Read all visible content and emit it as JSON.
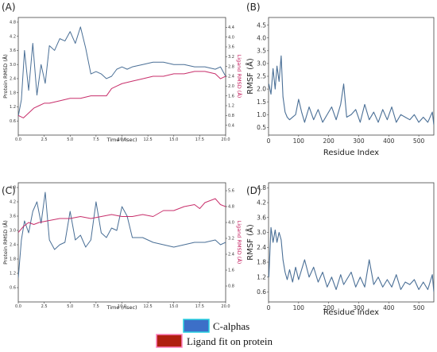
{
  "chart_data": [
    {
      "panel_label": "(A)",
      "type": "line",
      "xlabel": "Time (nsec)",
      "ylabel_left": "Protein RMSD (Å)",
      "ylabel_right": "Ligand RMSD (Å)",
      "xlim": [
        0,
        20
      ],
      "ylim_left": [
        0,
        5.0
      ],
      "ylim_right": [
        0,
        4.8
      ],
      "xticks": [
        "0.0",
        "2.5",
        "5.0",
        "7.5",
        "10.0",
        "12.5",
        "15.0",
        "17.5",
        "20.0"
      ],
      "yticks_left": [
        "0.6",
        "1.2",
        "1.8",
        "2.4",
        "3.0",
        "3.6",
        "4.2",
        "4.8"
      ],
      "yticks_right": [
        "0.4",
        "0.8",
        "1.2",
        "1.6",
        "2.0",
        "2.4",
        "2.8",
        "3.2",
        "3.6",
        "4.0",
        "4.4"
      ],
      "series": [
        {
          "color": "#4a6f96",
          "axis": "left",
          "x": [
            0,
            0.3,
            0.6,
            1.0,
            1.4,
            1.8,
            2.2,
            2.6,
            3.0,
            3.5,
            4.0,
            4.5,
            5.0,
            5.5,
            6.0,
            6.5,
            7.0,
            7.5,
            8.0,
            8.5,
            9.0,
            9.5,
            10.0,
            10.5,
            11.0,
            12.0,
            13.0,
            14.0,
            15.0,
            16.0,
            17.0,
            18.0,
            19.0,
            19.5,
            20.0
          ],
          "y": [
            0.8,
            1.5,
            3.6,
            1.9,
            3.9,
            1.7,
            3.0,
            2.2,
            3.8,
            3.6,
            4.1,
            4.0,
            4.4,
            3.9,
            4.6,
            3.7,
            2.6,
            2.7,
            2.6,
            2.4,
            2.5,
            2.8,
            2.9,
            2.8,
            2.9,
            3.0,
            3.1,
            3.1,
            3.0,
            3.0,
            2.9,
            2.9,
            2.8,
            2.9,
            2.5
          ]
        },
        {
          "color": "#c2185b",
          "axis": "right",
          "x": [
            0,
            0.5,
            1.0,
            1.5,
            2.0,
            2.5,
            3.0,
            4.0,
            5.0,
            6.0,
            7.0,
            8.0,
            8.5,
            9.0,
            9.5,
            10.0,
            11.0,
            12.0,
            13.0,
            14.0,
            15.0,
            16.0,
            17.0,
            18.0,
            19.0,
            19.5,
            20.0
          ],
          "y": [
            0.8,
            0.7,
            0.9,
            1.1,
            1.2,
            1.3,
            1.3,
            1.4,
            1.5,
            1.5,
            1.6,
            1.6,
            1.6,
            1.9,
            2.0,
            2.1,
            2.2,
            2.3,
            2.4,
            2.4,
            2.5,
            2.5,
            2.6,
            2.6,
            2.5,
            2.3,
            2.4
          ]
        }
      ]
    },
    {
      "panel_label": "(B)",
      "type": "line",
      "xlabel": "Residue Index",
      "ylabel": "RMSF (Å)",
      "xlim": [
        0,
        550
      ],
      "ylim": [
        0.2,
        4.8
      ],
      "xticks": [
        "0",
        "100",
        "200",
        "300",
        "400",
        "500"
      ],
      "yticks": [
        "0.5",
        "1.0",
        "1.5",
        "2.0",
        "2.5",
        "3.0",
        "3.5",
        "4.0",
        "4.5"
      ],
      "series": [
        {
          "color": "#4a6f96",
          "x": [
            1,
            8,
            15,
            22,
            28,
            35,
            42,
            48,
            55,
            62,
            70,
            80,
            90,
            100,
            110,
            120,
            135,
            150,
            165,
            180,
            195,
            210,
            225,
            240,
            250,
            260,
            275,
            290,
            305,
            320,
            335,
            350,
            365,
            380,
            395,
            410,
            425,
            440,
            455,
            470,
            485,
            500,
            515,
            530,
            545,
            550
          ],
          "y": [
            2.2,
            1.8,
            2.8,
            2.0,
            2.9,
            2.3,
            3.3,
            1.7,
            1.1,
            0.9,
            0.8,
            0.9,
            1.0,
            1.6,
            1.1,
            0.7,
            1.3,
            0.8,
            1.2,
            0.7,
            1.0,
            1.3,
            0.8,
            1.4,
            2.2,
            0.9,
            1.0,
            1.2,
            0.7,
            1.4,
            0.8,
            1.1,
            0.7,
            1.2,
            0.8,
            1.3,
            0.7,
            1.0,
            0.9,
            0.8,
            1.0,
            0.7,
            0.9,
            0.7,
            1.1,
            0.6
          ]
        }
      ]
    },
    {
      "panel_label": "(C)",
      "type": "line",
      "xlabel": "Time (nsec)",
      "ylabel_left": "Protein RMSD (Å)",
      "ylabel_right": "Ligand RMSD (Å)",
      "xlim": [
        0,
        20
      ],
      "ylim_left": [
        0,
        5.0
      ],
      "ylim_right": [
        0,
        6.0
      ],
      "xticks": [
        "0.0",
        "2.5",
        "5.0",
        "7.5",
        "10.0",
        "12.5",
        "15.0",
        "17.5",
        "20.0"
      ],
      "yticks_left": [
        "0.6",
        "1.2",
        "1.8",
        "2.4",
        "3.0",
        "3.6",
        "4.2",
        "4.8"
      ],
      "yticks_right": [
        "0.8",
        "1.6",
        "2.4",
        "3.2",
        "4.0",
        "4.8",
        "5.6"
      ],
      "series": [
        {
          "color": "#4a6f96",
          "axis": "left",
          "x": [
            0,
            0.3,
            0.6,
            1.0,
            1.4,
            1.8,
            2.2,
            2.6,
            3.0,
            3.5,
            4.0,
            4.5,
            5.0,
            5.5,
            6.0,
            6.5,
            7.0,
            7.5,
            8.0,
            8.5,
            9.0,
            9.5,
            10.0,
            10.5,
            11.0,
            12.0,
            13.0,
            14.0,
            15.0,
            16.0,
            17.0,
            18.0,
            19.0,
            19.5,
            20.0
          ],
          "y": [
            1.0,
            2.6,
            3.4,
            2.9,
            3.8,
            4.2,
            3.3,
            4.6,
            2.6,
            2.2,
            2.4,
            2.5,
            3.8,
            2.6,
            2.8,
            2.3,
            2.6,
            4.2,
            2.9,
            2.7,
            3.1,
            3.0,
            4.0,
            3.6,
            2.7,
            2.7,
            2.5,
            2.4,
            2.3,
            2.4,
            2.5,
            2.5,
            2.6,
            2.4,
            2.5
          ]
        },
        {
          "color": "#c2185b",
          "axis": "right",
          "x": [
            0,
            0.5,
            1.0,
            1.5,
            2.0,
            3.0,
            4.0,
            5.0,
            6.0,
            7.0,
            8.0,
            9.0,
            10.0,
            11.0,
            12.0,
            13.0,
            14.0,
            15.0,
            16.0,
            17.0,
            17.5,
            18.0,
            19.0,
            19.5,
            20.0
          ],
          "y": [
            3.5,
            3.8,
            4.0,
            3.9,
            4.0,
            4.1,
            4.2,
            4.2,
            4.3,
            4.2,
            4.3,
            4.4,
            4.3,
            4.3,
            4.4,
            4.3,
            4.6,
            4.6,
            4.8,
            4.9,
            4.7,
            5.0,
            5.2,
            4.9,
            4.8
          ]
        }
      ]
    },
    {
      "panel_label": "(D)",
      "type": "line",
      "xlabel": "Residue Index",
      "ylabel": "RMSF (Å)",
      "xlim": [
        0,
        550
      ],
      "ylim": [
        0.2,
        5.0
      ],
      "xticks": [
        "0",
        "100",
        "200",
        "300",
        "400",
        "500"
      ],
      "yticks": [
        "0.6",
        "1.2",
        "1.8",
        "2.4",
        "3.0",
        "3.6",
        "4.2",
        "4.8"
      ],
      "series": [
        {
          "color": "#4a6f96",
          "x": [
            1,
            8,
            15,
            22,
            28,
            35,
            42,
            48,
            55,
            62,
            70,
            80,
            90,
            100,
            110,
            120,
            135,
            150,
            165,
            180,
            195,
            210,
            225,
            240,
            250,
            260,
            275,
            290,
            305,
            320,
            335,
            350,
            365,
            380,
            395,
            410,
            425,
            440,
            455,
            470,
            485,
            500,
            515,
            530,
            545,
            550
          ],
          "y": [
            1.2,
            3.2,
            2.6,
            3.1,
            2.6,
            3.0,
            2.7,
            1.9,
            1.4,
            1.1,
            1.5,
            1.0,
            1.6,
            1.1,
            1.5,
            1.9,
            1.2,
            1.6,
            1.0,
            1.4,
            0.8,
            1.2,
            0.7,
            1.3,
            0.9,
            1.1,
            1.4,
            0.8,
            1.2,
            0.8,
            1.9,
            0.9,
            1.2,
            0.8,
            1.1,
            0.8,
            1.3,
            0.7,
            1.0,
            0.9,
            1.1,
            0.7,
            1.0,
            0.7,
            1.3,
            0.6
          ]
        }
      ]
    }
  ],
  "legend": {
    "items": [
      {
        "label": "C-alphas",
        "color": "#3c6fc8"
      },
      {
        "label": "Ligand fit on protein",
        "color": "#b02010"
      }
    ]
  }
}
